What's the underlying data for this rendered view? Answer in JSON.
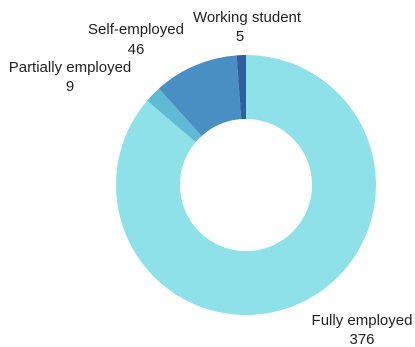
{
  "chart_data": {
    "type": "pie",
    "variant": "donut",
    "title": "",
    "start_angle": "12 o'clock",
    "direction": "clockwise",
    "slices": [
      {
        "label": "Fully employed",
        "value": 376,
        "value_text": "376",
        "color": "#8ee1e8"
      },
      {
        "label": "Partially employed",
        "value": 9,
        "value_text": "9",
        "color": "#5fbad6"
      },
      {
        "label": "Self-employed",
        "value": 46,
        "value_text": "46",
        "color": "#4a8fc3"
      },
      {
        "label": "Working student",
        "value": 5,
        "value_text": "5",
        "color": "#2e5f9e"
      }
    ]
  }
}
